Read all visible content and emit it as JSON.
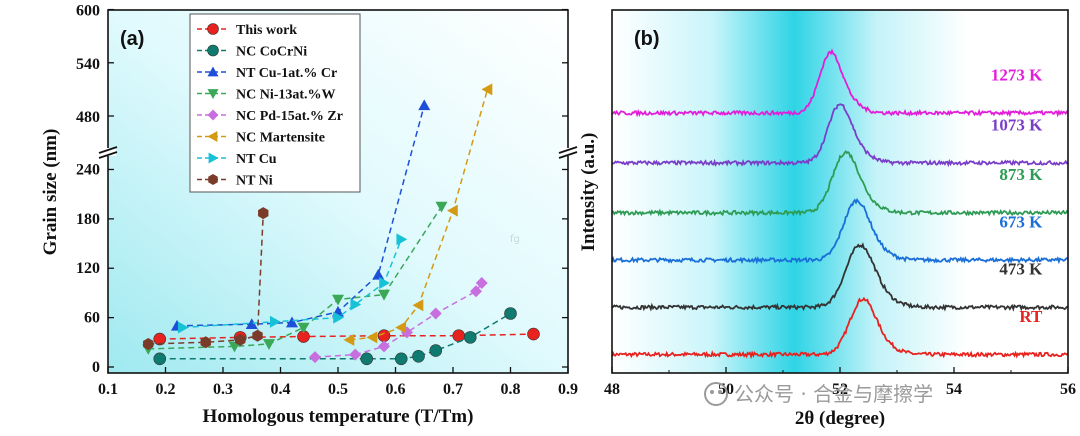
{
  "chart_data": [
    {
      "type": "scatter",
      "panel_label": "(a)",
      "xlabel": "Homologous temperature (T/Tm)",
      "ylabel": "Grain size (nm)",
      "xlim": [
        0.1,
        0.9
      ],
      "xticks": [
        "0.1",
        "0.2",
        "0.3",
        "0.4",
        "0.5",
        "0.6",
        "0.7",
        "0.8",
        "0.9"
      ],
      "yticks_lower": [
        "0",
        "60",
        "120",
        "180",
        "240"
      ],
      "yticks_upper": [
        "480",
        "540",
        "600"
      ],
      "axis_break": [
        250,
        450
      ],
      "legend_position": "top-center",
      "series": [
        {
          "name": "This work",
          "color": "#e8221f",
          "marker": "circle",
          "x": [
            0.19,
            0.33,
            0.44,
            0.58,
            0.71,
            0.84
          ],
          "y": [
            34,
            36,
            37,
            38,
            38,
            40
          ]
        },
        {
          "name": "NC CoCrNi",
          "color": "#0f7b70",
          "marker": "circle",
          "x": [
            0.19,
            0.55,
            0.61,
            0.64,
            0.67,
            0.73,
            0.8
          ],
          "y": [
            10,
            10,
            10,
            13,
            20,
            36,
            65
          ]
        },
        {
          "name": "NT Cu-1at.% Cr",
          "color": "#1d4fd8",
          "marker": "triangle-up",
          "x": [
            0.22,
            0.35,
            0.42,
            0.5,
            0.57,
            0.65
          ],
          "y": [
            50,
            52,
            54,
            67,
            112,
            492
          ]
        },
        {
          "name": "NC Ni-13at.%W",
          "color": "#3aa857",
          "marker": "triangle-down",
          "x": [
            0.17,
            0.32,
            0.38,
            0.44,
            0.5,
            0.58,
            0.68
          ],
          "y": [
            22,
            25,
            28,
            48,
            82,
            88,
            195
          ]
        },
        {
          "name": "NC Pd-15at.% Zr",
          "color": "#c86fe0",
          "marker": "diamond",
          "x": [
            0.46,
            0.53,
            0.58,
            0.62,
            0.67,
            0.74,
            0.75
          ],
          "y": [
            12,
            15,
            25,
            42,
            65,
            92,
            102
          ]
        },
        {
          "name": "NC Martensite",
          "color": "#d49a14",
          "marker": "triangle-left",
          "x": [
            0.52,
            0.56,
            0.61,
            0.64,
            0.7,
            0.76
          ],
          "y": [
            33,
            36,
            48,
            75,
            190,
            510
          ]
        },
        {
          "name": "NT Cu",
          "color": "#17c2d6",
          "marker": "triangle-right",
          "x": [
            0.23,
            0.39,
            0.5,
            0.53,
            0.58,
            0.61
          ],
          "y": [
            48,
            55,
            60,
            76,
            102,
            155
          ]
        },
        {
          "name": "NT Ni",
          "color": "#7b3b2a",
          "marker": "hexagon",
          "x": [
            0.17,
            0.27,
            0.33,
            0.36,
            0.37
          ],
          "y": [
            28,
            30,
            33,
            38,
            187
          ]
        }
      ]
    },
    {
      "type": "line",
      "panel_label": "(b)",
      "xlabel": "2θ (degree)",
      "ylabel": "Intensity (a.u.)",
      "xlim": [
        48,
        56
      ],
      "xticks": [
        "48",
        "50",
        "52",
        "54",
        "56"
      ],
      "series": [
        {
          "name": "RT",
          "color": "#e8221f",
          "baseline": 0.2,
          "peak_x": 52.38,
          "peak_height": 0.9,
          "width": 0.22
        },
        {
          "name": "473 K",
          "color": "#333333",
          "baseline": 1.1,
          "peak_x": 52.33,
          "peak_height": 1.0,
          "width": 0.24
        },
        {
          "name": "673 K",
          "color": "#1a6fd8",
          "baseline": 2.0,
          "peak_x": 52.27,
          "peak_height": 0.96,
          "width": 0.22
        },
        {
          "name": "873 K",
          "color": "#2e9c55",
          "baseline": 2.9,
          "peak_x": 52.08,
          "peak_height": 0.98,
          "width": 0.22
        },
        {
          "name": "1073 K",
          "color": "#7a3fc8",
          "baseline": 3.85,
          "peak_x": 51.98,
          "peak_height": 0.96,
          "width": 0.2
        },
        {
          "name": "1273 K",
          "color": "#e11fd8",
          "baseline": 4.8,
          "peak_x": 51.82,
          "peak_height": 1.0,
          "width": 0.19
        }
      ]
    }
  ],
  "watermarks": {
    "main": "公众号 · 合金与摩擦学",
    "faint": "fg"
  }
}
